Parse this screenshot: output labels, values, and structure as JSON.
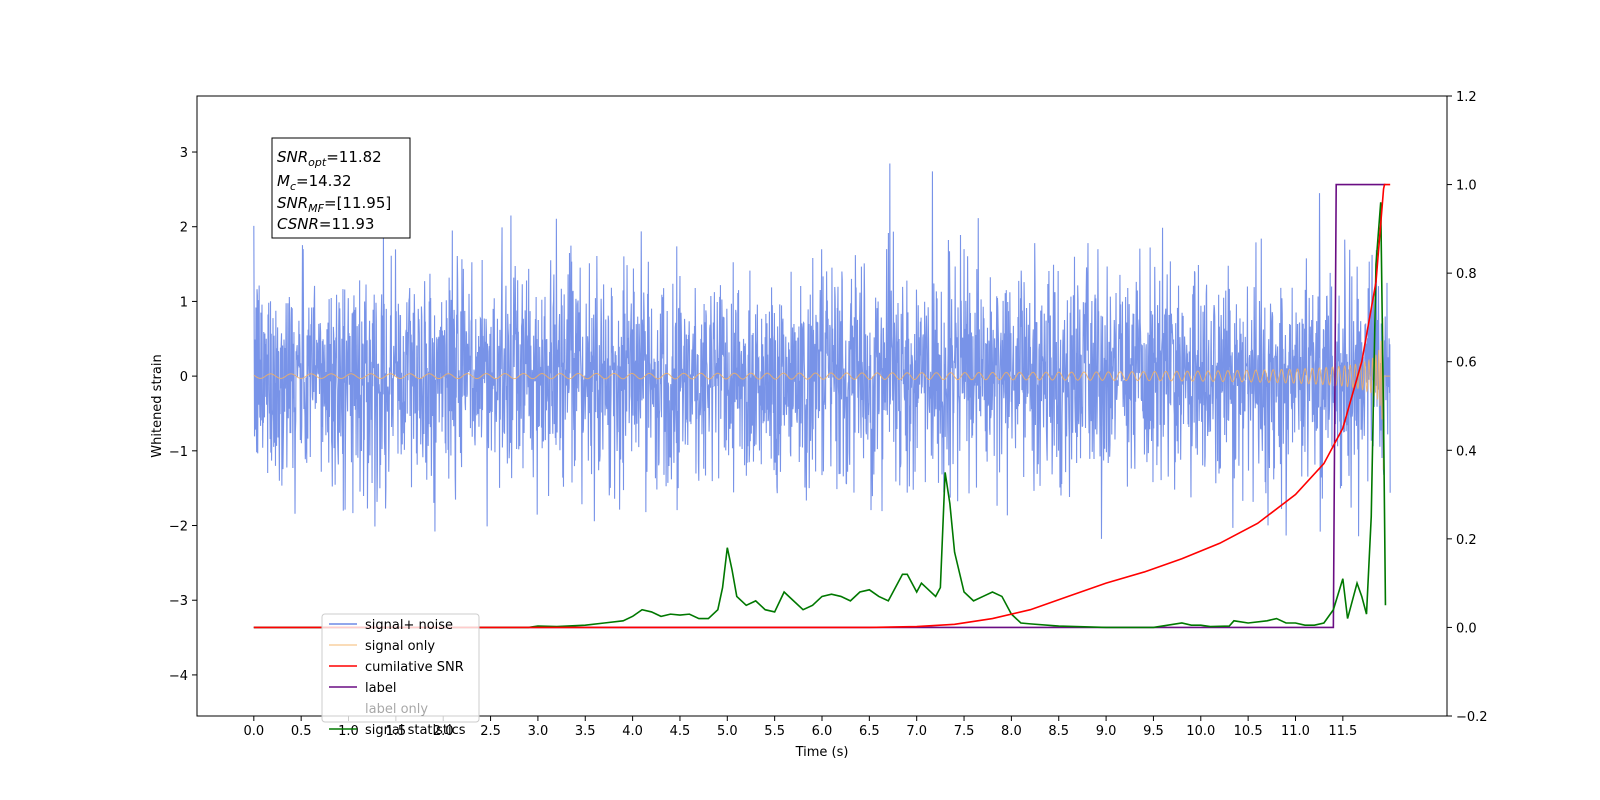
{
  "chart_data": {
    "type": "line",
    "title": "",
    "xlabel": "Time (s)",
    "ylabel": "Whitened strain",
    "xlim": [
      -0.6,
      12.6
    ],
    "ylim": [
      -4.55,
      3.75
    ],
    "y2lim": [
      -0.2,
      1.2
    ],
    "xticks": [
      "0.0",
      "0.5",
      "1.0",
      "1.5",
      "2.0",
      "2.5",
      "3.0",
      "3.5",
      "4.0",
      "4.5",
      "5.0",
      "5.5",
      "6.0",
      "6.5",
      "7.0",
      "7.5",
      "8.0",
      "8.5",
      "9.0",
      "9.5",
      "10.0",
      "10.5",
      "11.0",
      "11.5"
    ],
    "yticks": [
      "−4",
      "−3",
      "−2",
      "−1",
      "0",
      "1",
      "2",
      "3"
    ],
    "y2ticks": [
      "−0.2",
      "0.0",
      "0.2",
      "0.4",
      "0.6",
      "0.8",
      "1.0",
      "1.2"
    ],
    "grid": false,
    "legend_position": "lower-left",
    "annotation": {
      "snr_opt": {
        "sym": "SNR",
        "sub": "opt",
        "val": "=11.82"
      },
      "mc": {
        "sym": "M",
        "sub": "c",
        "val": "=14.32"
      },
      "snr_mf": {
        "sym": "SNR",
        "sub": "MF",
        "val": "=[11.95]"
      },
      "csnr": {
        "sym": "CSNR",
        "sub": "",
        "val": "=11.93"
      }
    },
    "series": [
      {
        "name": "signal+ noise",
        "axis": "left",
        "color": "#6d8ae6",
        "kind": "noise",
        "std": 0.72
      },
      {
        "name": "signal only",
        "axis": "left",
        "color": "#f5b060",
        "kind": "chirp",
        "t_merge": 11.93
      },
      {
        "name": "cumilative SNR",
        "axis": "right",
        "color": "#ff0000",
        "x": [
          0,
          6.5,
          7.0,
          7.4,
          7.8,
          8.2,
          8.6,
          9.0,
          9.4,
          9.8,
          10.2,
          10.6,
          11.0,
          11.3,
          11.5,
          11.7,
          11.85,
          11.93,
          11.94,
          12.0
        ],
        "y": [
          0,
          0,
          0.002,
          0.007,
          0.02,
          0.04,
          0.07,
          0.1,
          0.125,
          0.155,
          0.19,
          0.235,
          0.3,
          0.37,
          0.45,
          0.6,
          0.78,
          0.99,
          1.0,
          1.0
        ]
      },
      {
        "name": "label",
        "axis": "right",
        "color": "#6a0d83",
        "x": [
          0,
          11.4,
          11.43,
          11.95
        ],
        "y": [
          0,
          0,
          1.0,
          1.0
        ]
      },
      {
        "name": "label only",
        "axis": "right",
        "color": "#6a0d83",
        "legend_hidden": true
      },
      {
        "name": "signal statistics",
        "axis": "right",
        "color": "#007800",
        "x": [
          0,
          2.9,
          3.0,
          3.2,
          3.5,
          3.7,
          3.9,
          4.0,
          4.1,
          4.2,
          4.3,
          4.4,
          4.5,
          4.6,
          4.7,
          4.8,
          4.9,
          4.95,
          5.0,
          5.05,
          5.1,
          5.2,
          5.3,
          5.4,
          5.5,
          5.6,
          5.7,
          5.8,
          5.9,
          6.0,
          6.1,
          6.2,
          6.3,
          6.4,
          6.5,
          6.6,
          6.7,
          6.8,
          6.85,
          6.9,
          7.0,
          7.05,
          7.1,
          7.2,
          7.25,
          7.3,
          7.35,
          7.4,
          7.5,
          7.6,
          7.7,
          7.8,
          7.9,
          8.0,
          8.1,
          8.2,
          8.5,
          9.0,
          9.5,
          9.8,
          9.9,
          10.0,
          10.1,
          10.3,
          10.35,
          10.5,
          10.7,
          10.8,
          10.9,
          11.0,
          11.1,
          11.2,
          11.3,
          11.4,
          11.5,
          11.55,
          11.65,
          11.7,
          11.75,
          11.8,
          11.85,
          11.9,
          11.93,
          11.95
        ],
        "y": [
          0,
          0,
          0.003,
          0.002,
          0.005,
          0.01,
          0.015,
          0.025,
          0.04,
          0.035,
          0.025,
          0.03,
          0.028,
          0.03,
          0.02,
          0.02,
          0.04,
          0.09,
          0.18,
          0.13,
          0.07,
          0.05,
          0.06,
          0.04,
          0.035,
          0.08,
          0.06,
          0.04,
          0.05,
          0.07,
          0.075,
          0.07,
          0.06,
          0.08,
          0.085,
          0.07,
          0.06,
          0.1,
          0.12,
          0.12,
          0.08,
          0.1,
          0.09,
          0.07,
          0.09,
          0.35,
          0.28,
          0.17,
          0.08,
          0.06,
          0.07,
          0.08,
          0.07,
          0.03,
          0.01,
          0.008,
          0.003,
          0,
          0,
          0.01,
          0.005,
          0.005,
          0.002,
          0.003,
          0.015,
          0.01,
          0.015,
          0.02,
          0.01,
          0.01,
          0.005,
          0.005,
          0.01,
          0.04,
          0.11,
          0.02,
          0.1,
          0.07,
          0.03,
          0.25,
          0.82,
          0.96,
          0.47,
          0.05
        ]
      }
    ]
  }
}
